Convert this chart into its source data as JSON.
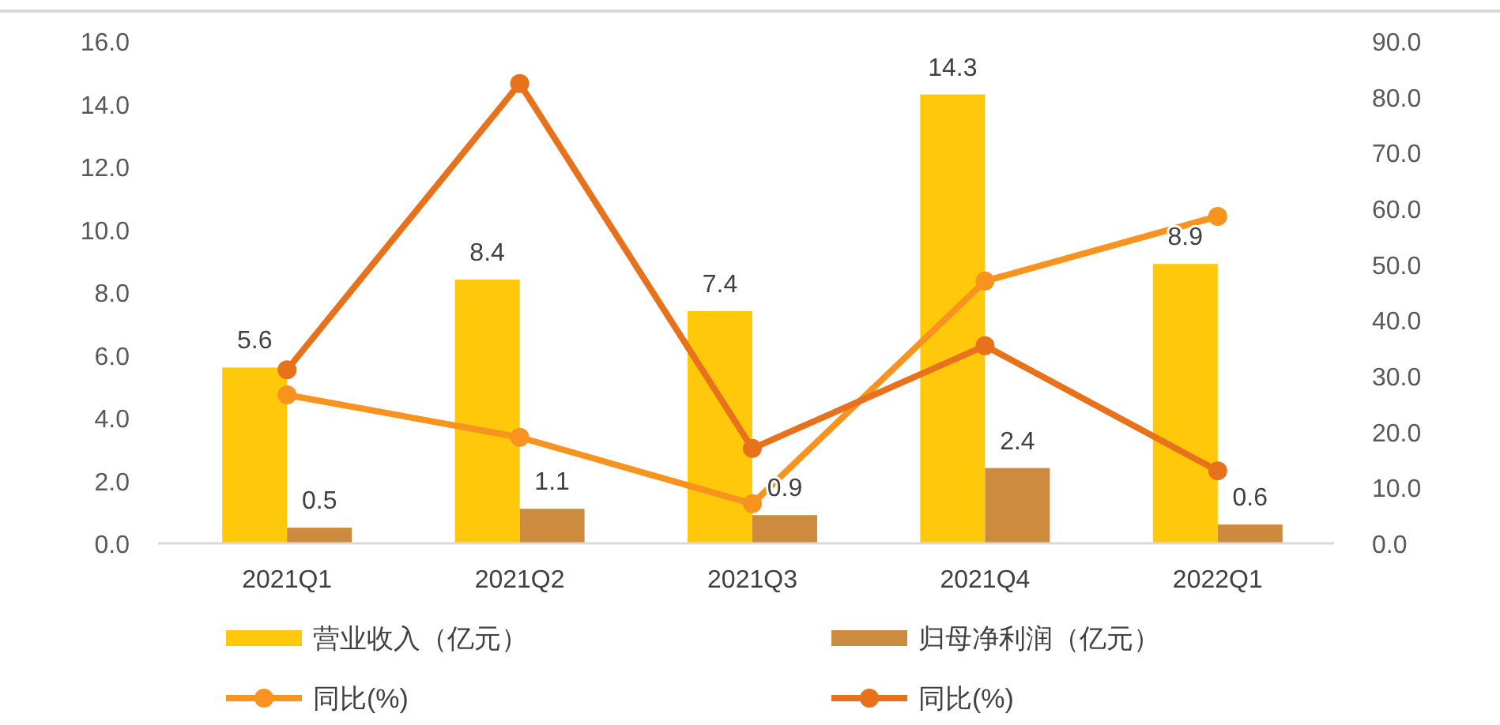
{
  "chart_data": {
    "type": "bar",
    "categories": [
      "2021Q1",
      "2021Q2",
      "2021Q3",
      "2021Q4",
      "2022Q1"
    ],
    "series": [
      {
        "name": "营业收入（亿元）",
        "color": "#ffc80a",
        "values": [
          5.6,
          8.4,
          7.4,
          14.3,
          8.9
        ],
        "value_labels": [
          "5.6",
          "8.4",
          "7.4",
          "14.3",
          "8.9"
        ]
      },
      {
        "name": "归母净利润（亿元）",
        "color": "#cd8b3f",
        "values": [
          0.5,
          1.1,
          0.9,
          2.4,
          0.6
        ],
        "value_labels": [
          "0.5",
          "1.1",
          "0.9",
          "2.4",
          "0.6"
        ]
      },
      {
        "name": "同比(%)",
        "type": "line",
        "axis": "y2",
        "color": "#f7931e",
        "values": [
          26.6,
          19.0,
          7.1,
          47.0,
          58.6
        ]
      },
      {
        "name": "同比(%)",
        "type": "line",
        "axis": "y2",
        "color": "#e8711c",
        "values": [
          31.1,
          82.4,
          17.0,
          35.4,
          13.0
        ]
      }
    ],
    "ylim": [
      0,
      16
    ],
    "yticks": [
      {
        "value": 0,
        "label": "0.0"
      },
      {
        "value": 2,
        "label": "2.0"
      },
      {
        "value": 4,
        "label": "4.0"
      },
      {
        "value": 6,
        "label": "6.0"
      },
      {
        "value": 8,
        "label": "8.0"
      },
      {
        "value": 10,
        "label": "10.0"
      },
      {
        "value": 12,
        "label": "12.0"
      },
      {
        "value": 14,
        "label": "14.0"
      },
      {
        "value": 16,
        "label": "16.0"
      }
    ],
    "y2lim": [
      0,
      90
    ],
    "y2ticks": [
      {
        "value": 0,
        "label": "0.0"
      },
      {
        "value": 10,
        "label": "10.0"
      },
      {
        "value": 20,
        "label": "20.0"
      },
      {
        "value": 30,
        "label": "30.0"
      },
      {
        "value": 40,
        "label": "40.0"
      },
      {
        "value": 50,
        "label": "50.0"
      },
      {
        "value": 60,
        "label": "60.0"
      },
      {
        "value": 70,
        "label": "70.0"
      },
      {
        "value": 80,
        "label": "80.0"
      },
      {
        "value": 90,
        "label": "90.0"
      }
    ],
    "marker": "circle",
    "legend": "bottom",
    "grid": false
  }
}
